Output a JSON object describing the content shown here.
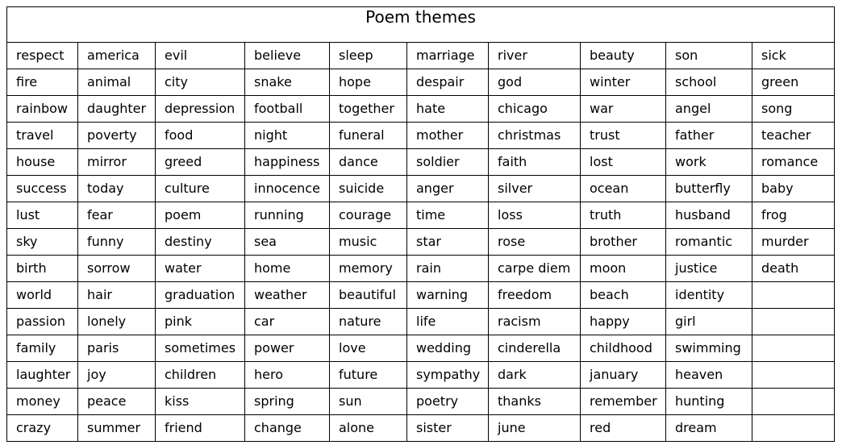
{
  "title": "Poem themes",
  "rows": [
    [
      "respect",
      "america",
      "evil",
      "believe",
      "sleep",
      "marriage",
      "river",
      "beauty",
      "son",
      "sick"
    ],
    [
      "fire",
      "animal",
      "city",
      "snake",
      "hope",
      "despair",
      "god",
      "winter",
      "school",
      "green"
    ],
    [
      "rainbow",
      "daughter",
      "depression",
      "football",
      "together",
      "hate",
      "chicago",
      "war",
      "angel",
      "song"
    ],
    [
      "travel",
      "poverty",
      "food",
      "night",
      "funeral",
      "mother",
      "christmas",
      "trust",
      "father",
      "teacher"
    ],
    [
      "house",
      "mirror",
      "greed",
      "happiness",
      "dance",
      "soldier",
      "faith",
      "lost",
      "work",
      "romance"
    ],
    [
      "success",
      "today",
      "culture",
      "innocence",
      "suicide",
      "anger",
      "silver",
      "ocean",
      "butterfly",
      "baby"
    ],
    [
      "lust",
      "fear",
      "poem",
      "running",
      "courage",
      "time",
      "loss",
      "truth",
      "husband",
      "frog"
    ],
    [
      "sky",
      "funny",
      "destiny",
      "sea",
      "music",
      "star",
      "rose",
      "brother",
      "romantic",
      "murder"
    ],
    [
      "birth",
      "sorrow",
      "water",
      "home",
      "memory",
      "rain",
      "carpe diem",
      "moon",
      "justice",
      "death"
    ],
    [
      "world",
      "hair",
      "graduation",
      "weather",
      "beautiful",
      "warning",
      "freedom",
      "beach",
      "identity",
      ""
    ],
    [
      "passion",
      "lonely",
      "pink",
      "car",
      "nature",
      "life",
      "racism",
      "happy",
      "girl",
      ""
    ],
    [
      "family",
      "paris",
      "sometimes",
      "power",
      "love",
      "wedding",
      "cinderella",
      "childhood",
      "swimming",
      ""
    ],
    [
      "laughter",
      "joy",
      "children",
      "hero",
      "future",
      "sympathy",
      "dark",
      "january",
      "heaven",
      ""
    ],
    [
      "money",
      "peace",
      "kiss",
      "spring",
      "sun",
      "poetry",
      "thanks",
      "remember",
      "hunting",
      ""
    ],
    [
      "crazy",
      "summer",
      "friend",
      "change",
      "alone",
      "sister",
      "june",
      "red",
      "dream",
      ""
    ]
  ]
}
